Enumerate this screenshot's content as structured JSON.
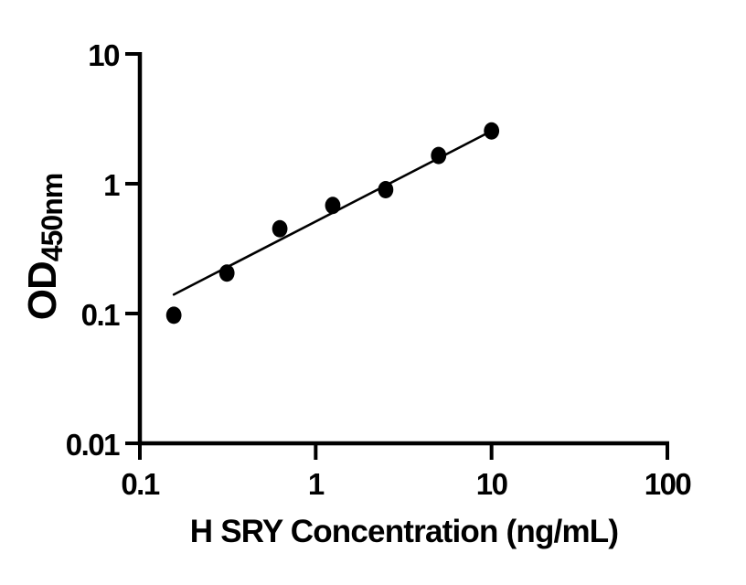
{
  "figure": {
    "background": "#ffffff",
    "foreground": "#000000"
  },
  "chart_data": {
    "type": "scatter",
    "title": "",
    "xlabel": "H SRY Concentration (ng/mL)",
    "ylabel": "OD450nm",
    "ylabel_main": "OD",
    "ylabel_sub": "450nm",
    "x_scale": "log10",
    "y_scale": "log10",
    "xlim": [
      0.1,
      100
    ],
    "ylim": [
      0.01,
      10
    ],
    "x_ticks": [
      "0.1",
      "1",
      "10",
      "100"
    ],
    "y_ticks": [
      "10",
      "1",
      "0.1",
      "0.01"
    ],
    "grid": false,
    "legend": "none",
    "marker_color": "#000000",
    "line_color": "#000000",
    "series": [
      {
        "name": "fit-line",
        "type": "line",
        "color": "#000000",
        "x": [
          0.156,
          10
        ],
        "y": [
          0.14,
          2.55
        ]
      },
      {
        "name": "standard-points",
        "type": "scatter",
        "marker": "filled-circle",
        "color": "#000000",
        "x": [
          0.156,
          0.3125,
          0.625,
          1.25,
          2.5,
          5,
          10
        ],
        "y": [
          0.097,
          0.205,
          0.45,
          0.68,
          0.9,
          1.65,
          2.55
        ]
      }
    ]
  }
}
